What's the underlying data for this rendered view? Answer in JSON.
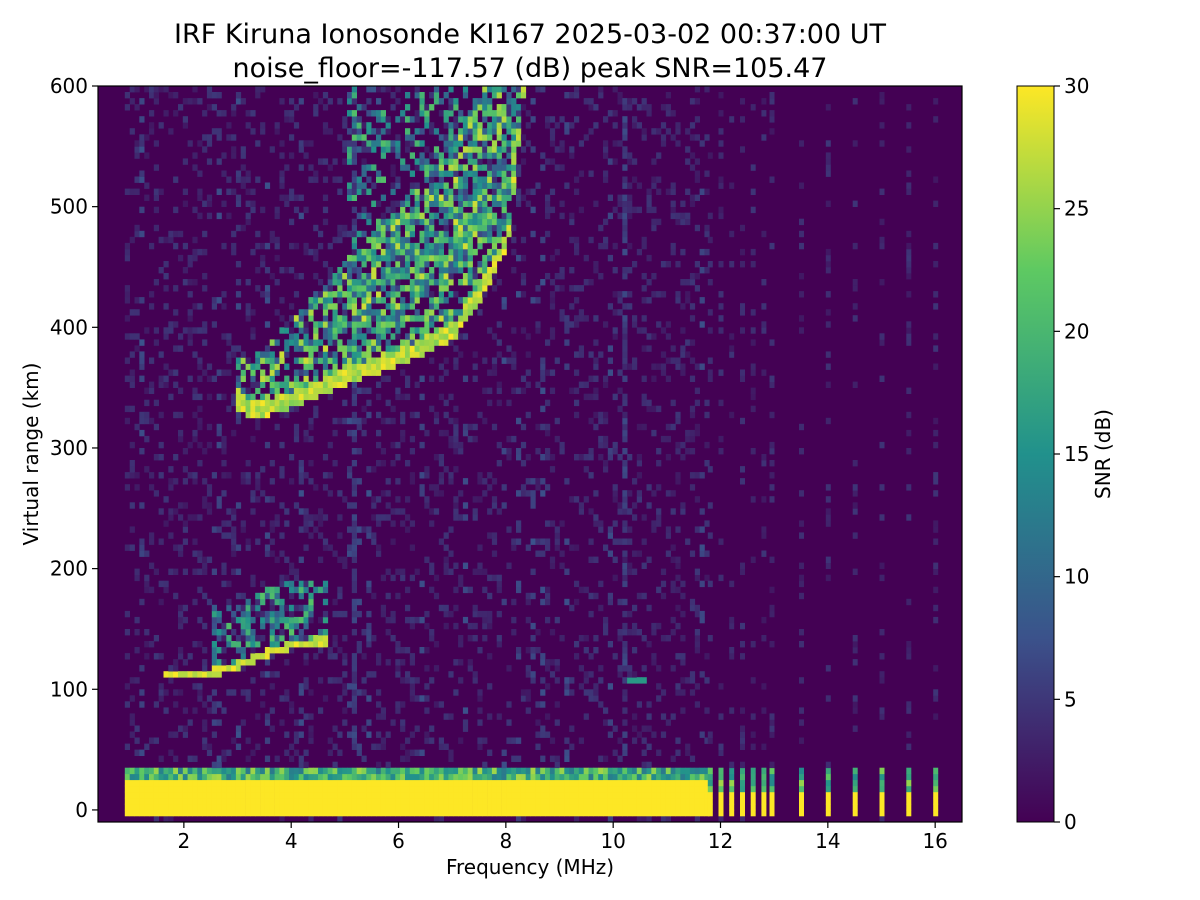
{
  "chart_data": {
    "type": "heatmap",
    "title_line1": "IRF Kiruna Ionosonde KI167 2025-03-02 00:37:00  UT",
    "title_line2": "noise_floor=-117.57 (dB) peak SNR=105.47",
    "xlabel": "Frequency (MHz)",
    "ylabel": "Virtual range (km)",
    "colorbar_label": "SNR (dB)",
    "colormap": "viridis",
    "colormap_stops": [
      "#440154",
      "#3b528b",
      "#21918c",
      "#5ec962",
      "#fde725"
    ],
    "xlim": [
      0.4,
      16.5
    ],
    "ylim": [
      -10,
      600
    ],
    "clim": [
      0,
      30
    ],
    "x_ticks": [
      2,
      4,
      6,
      8,
      10,
      12,
      14,
      16
    ],
    "y_ticks": [
      0,
      100,
      200,
      300,
      400,
      500,
      600
    ],
    "colorbar_ticks": [
      0,
      5,
      10,
      15,
      20,
      25,
      30
    ],
    "x_tick_labels": [
      "2",
      "4",
      "6",
      "8",
      "10",
      "12",
      "14",
      "16"
    ],
    "y_tick_labels": [
      "0",
      "100",
      "200",
      "300",
      "400",
      "500",
      "600"
    ],
    "colorbar_tick_labels": [
      "0",
      "5",
      "10",
      "15",
      "20",
      "25",
      "30"
    ],
    "sweep_frequency_range_mhz": [
      0.9,
      11.7
    ],
    "high_frequency_channels_mhz": [
      11.8,
      12.0,
      12.2,
      12.4,
      12.6,
      12.8,
      12.95,
      13.5,
      14.0,
      14.5,
      15.0,
      15.5,
      16.0
    ],
    "ground_band_range_km": [
      -5,
      35
    ],
    "traces": [
      {
        "name": "E-layer echo",
        "points": [
          [
            1.6,
            107
          ],
          [
            2.0,
            108
          ],
          [
            2.5,
            110
          ],
          [
            3.0,
            116
          ],
          [
            3.5,
            126
          ],
          [
            4.0,
            133
          ],
          [
            4.6,
            136
          ]
        ],
        "peak_snr_db": 30
      },
      {
        "name": "F-layer echo",
        "points": [
          [
            2.9,
            335
          ],
          [
            3.3,
            325
          ],
          [
            3.8,
            332
          ],
          [
            4.5,
            345
          ],
          [
            5.0,
            355
          ],
          [
            6.0,
            370
          ],
          [
            7.0,
            392
          ],
          [
            7.5,
            425
          ],
          [
            8.0,
            470
          ],
          [
            8.3,
            600
          ]
        ],
        "peak_snr_db": 30
      }
    ],
    "interference_lines_mhz": [
      5.15,
      10.2
    ],
    "spot_echo": {
      "frequency_mhz": 10.4,
      "range_km": 104
    }
  }
}
